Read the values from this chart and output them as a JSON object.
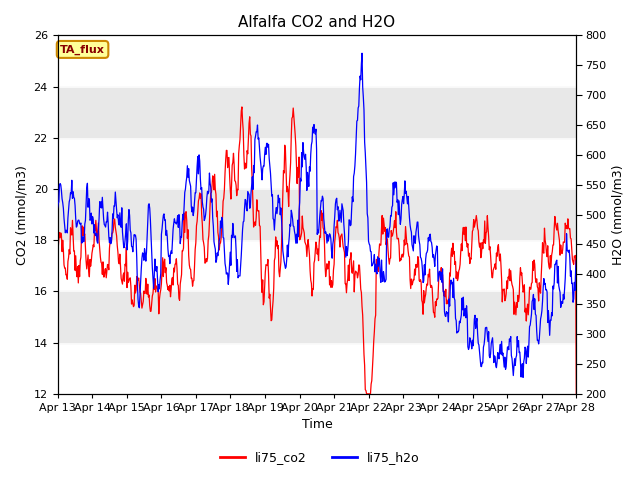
{
  "title": "Alfalfa CO2 and H2O",
  "xlabel": "Time",
  "ylabel_left": "CO2 (mmol/m3)",
  "ylabel_right": "H2O (mmol/m3)",
  "ylim_left": [
    12,
    26
  ],
  "ylim_right": [
    200,
    800
  ],
  "yticks_left": [
    12,
    14,
    16,
    18,
    20,
    22,
    24,
    26
  ],
  "yticks_right": [
    200,
    250,
    300,
    350,
    400,
    450,
    500,
    550,
    600,
    650,
    700,
    750,
    800
  ],
  "xtick_labels": [
    "Apr 13",
    "Apr 14",
    "Apr 15",
    "Apr 16",
    "Apr 17",
    "Apr 18",
    "Apr 19",
    "Apr 20",
    "Apr 21",
    "Apr 22",
    "Apr 23",
    "Apr 24",
    "Apr 25",
    "Apr 26",
    "Apr 27",
    "Apr 28"
  ],
  "legend_labels": [
    "li75_co2",
    "li75_h2o"
  ],
  "legend_colors": [
    "red",
    "blue"
  ],
  "annotation_text": "TA_flux",
  "annotation_bg": "#FFFF99",
  "annotation_border": "#CC8800",
  "gray_band_color": "#E8E8E8",
  "title_fontsize": 11,
  "label_fontsize": 9,
  "tick_fontsize": 8
}
